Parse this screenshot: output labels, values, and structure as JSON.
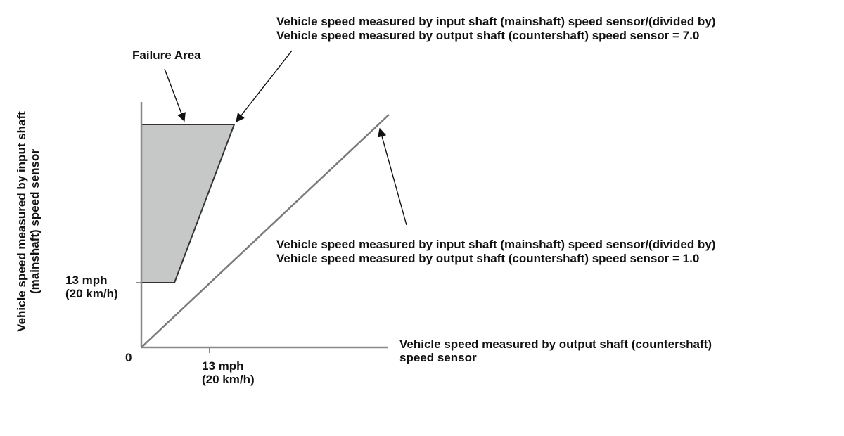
{
  "labels": {
    "failure_area": "Failure Area",
    "ratio_7_line1": "Vehicle speed measured by input shaft (mainshaft) speed sensor/(divided by)",
    "ratio_7_line2": "Vehicle speed measured by output shaft (countershaft) speed sensor = 7.0",
    "ratio_1_line1": "Vehicle speed measured by input shaft (mainshaft) speed sensor/(divided by)",
    "ratio_1_line2": "Vehicle speed measured by output shaft (countershaft) speed sensor = 1.0",
    "x_axis_line1": "Vehicle speed measured by output shaft (countershaft)",
    "x_axis_line2": "speed sensor",
    "y_axis_line1": "Vehicle speed measured by input shaft",
    "y_axis_line2": "(mainshaft) speed sensor",
    "origin": "0",
    "y_tick_line1": "13 mph",
    "y_tick_line2": "(20 km/h)",
    "x_tick_line1": "13 mph",
    "x_tick_line2": "(20 km/h)"
  },
  "colors": {
    "failure_fill": "#c6c7c7",
    "axis": "#8a8a8a",
    "line": "#7a7a7a",
    "edge": "#333333"
  }
}
